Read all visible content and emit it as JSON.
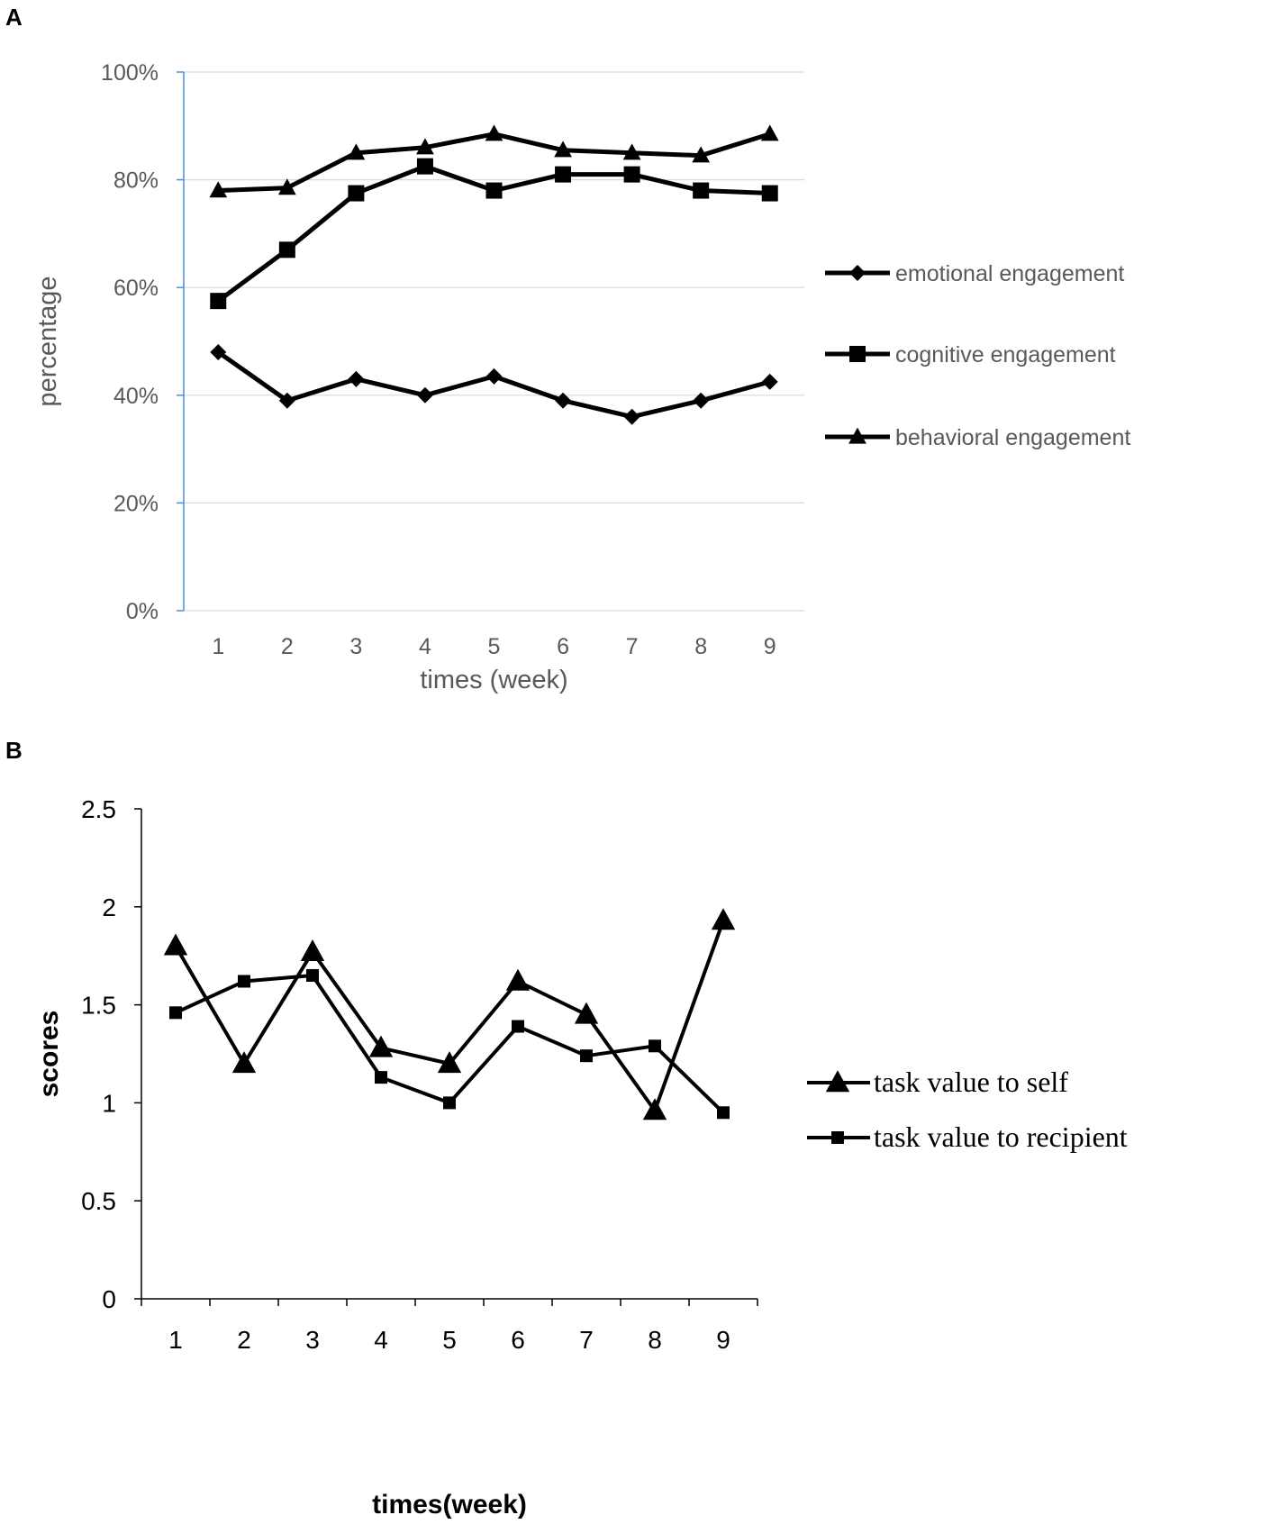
{
  "chart_data": [
    {
      "panel": "A",
      "type": "line",
      "categories": [
        "1",
        "2",
        "3",
        "4",
        "5",
        "6",
        "7",
        "8",
        "9"
      ],
      "xlabel": "times (week)",
      "ylabel": "percentage",
      "ylim": [
        0,
        100
      ],
      "yticks": [
        "0%",
        "20%",
        "40%",
        "60%",
        "80%",
        "100%"
      ],
      "grid": true,
      "legend_position": "right",
      "series": [
        {
          "name": "emotional engagement",
          "marker": "diamond",
          "values": [
            48,
            39,
            43,
            40,
            43.5,
            39,
            36,
            39,
            42.5
          ]
        },
        {
          "name": "cognitive engagement",
          "marker": "square",
          "values": [
            57.5,
            67,
            77.5,
            82.5,
            78,
            81,
            81,
            78,
            77.5
          ]
        },
        {
          "name": "behavioral engagement",
          "marker": "triangle",
          "values": [
            78,
            78.5,
            85,
            86,
            88.5,
            85.5,
            85,
            84.5,
            88.5
          ]
        }
      ]
    },
    {
      "panel": "B",
      "type": "line",
      "categories": [
        "1",
        "2",
        "3",
        "4",
        "5",
        "6",
        "7",
        "8",
        "9"
      ],
      "xlabel": "times(week)",
      "ylabel": "scores",
      "ylim": [
        0,
        2.5
      ],
      "yticks": [
        "0",
        "0.5",
        "1",
        "1.5",
        "2",
        "2.5"
      ],
      "grid": false,
      "legend_position": "right",
      "series": [
        {
          "name": "task value to self",
          "marker": "triangle",
          "values": [
            1.8,
            1.2,
            1.77,
            1.28,
            1.2,
            1.62,
            1.45,
            0.96,
            1.93
          ]
        },
        {
          "name": "task value to recipient",
          "marker": "square",
          "values": [
            1.46,
            1.62,
            1.65,
            1.13,
            1.0,
            1.39,
            1.24,
            1.29,
            0.95
          ]
        }
      ]
    }
  ]
}
